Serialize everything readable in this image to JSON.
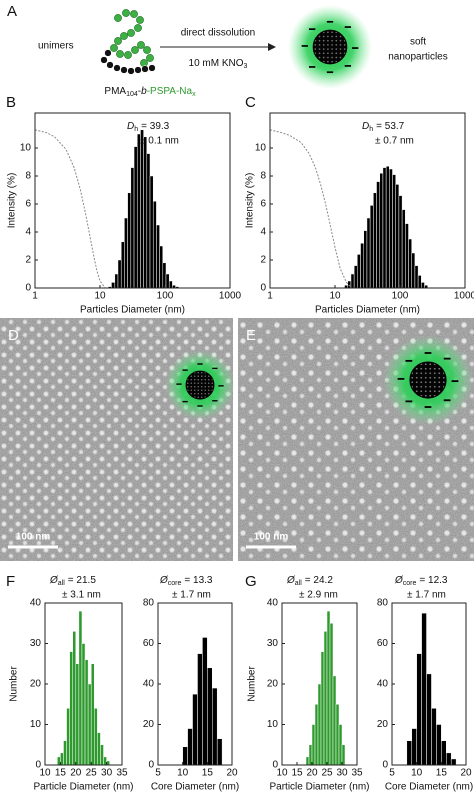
{
  "panel_a": {
    "label": "A",
    "left_text": "unimers",
    "arrow_top": "direct dissolution",
    "arrow_bottom": [
      "10 mM KNO",
      "3"
    ],
    "polymer_label": [
      "PMA",
      "104",
      "-",
      "b",
      "-PSPA-Na",
      "x"
    ],
    "right_text": [
      "soft",
      "nanoparticles"
    ]
  },
  "tem": [
    {
      "label": "D",
      "scale_bar": "100 nm"
    },
    {
      "label": "E",
      "scale_bar": "100 nm"
    }
  ],
  "chart_data": [
    {
      "type": "histogram",
      "panel_label": "B",
      "xscale": "log",
      "xlim": [
        1,
        1000
      ],
      "xticks": [
        1,
        10,
        100,
        1000
      ],
      "ylim": [
        0,
        12.5
      ],
      "yticks": [
        0,
        2,
        4,
        6,
        8,
        10
      ],
      "x_label": "Particles Diameter (nm)",
      "y_label": "Intensity (%)",
      "color": "#000000",
      "bins": [
        13.4,
        15.0,
        16.9,
        18.9,
        21.2,
        23.7,
        26.6,
        29.8,
        33.4,
        37.4,
        41.9,
        46.9,
        52.5,
        58.8,
        65.9,
        73.8,
        82.6,
        92.5,
        103.6,
        116.1,
        130.0,
        145.6,
        163.1
      ],
      "values": [
        0.1,
        0.4,
        1.0,
        2.0,
        3.3,
        5.0,
        6.8,
        8.6,
        10.1,
        11.0,
        11.3,
        10.8,
        9.6,
        8.0,
        6.2,
        4.5,
        3.0,
        1.8,
        1.0,
        0.5,
        0.2,
        0.1
      ],
      "curve_x": [
        1,
        1.5,
        2,
        3,
        4,
        5,
        6,
        7,
        8,
        9,
        10,
        12
      ],
      "curve_values": [
        11.3,
        11.1,
        10.8,
        9.9,
        8.6,
        7.0,
        5.3,
        3.7,
        2.3,
        1.2,
        0.5,
        0
      ],
      "curve_color": "#888888",
      "annotation": {
        "symbol": "D",
        "subscript": "h",
        "text": "= 39.3",
        "line2": "± 0.1 nm"
      }
    },
    {
      "type": "histogram",
      "panel_label": "C",
      "xscale": "log",
      "xlim": [
        1,
        1000
      ],
      "xticks": [
        1,
        10,
        100,
        1000
      ],
      "ylim": [
        0,
        12.5
      ],
      "yticks": [
        0,
        2,
        4,
        6,
        8,
        10
      ],
      "x_label": "Particles Diameter (nm)",
      "y_label": "Intensity (%)",
      "color": "#000000",
      "bins": [
        14.0,
        15.7,
        17.6,
        19.7,
        22.0,
        24.7,
        27.7,
        31.0,
        34.7,
        38.9,
        43.5,
        48.8,
        54.6,
        61.2,
        68.5,
        76.7,
        85.9,
        96.2,
        107.8,
        120.7,
        135.2,
        151.4,
        169.6,
        190.0,
        212.8,
        238.3,
        266.9
      ],
      "values": [
        0.2,
        0.5,
        1.0,
        1.6,
        2.4,
        3.2,
        4.1,
        5.0,
        5.9,
        6.8,
        7.6,
        8.2,
        8.6,
        8.7,
        8.5,
        8.1,
        7.4,
        6.6,
        5.6,
        4.6,
        3.5,
        2.5,
        1.6,
        0.9,
        0.4,
        0.2
      ],
      "curve_x": [
        1,
        1.5,
        2,
        3,
        4,
        5,
        6,
        7,
        8,
        10,
        12,
        15,
        18
      ],
      "curve_values": [
        11.3,
        11.1,
        10.9,
        10.4,
        9.6,
        8.6,
        7.4,
        6.2,
        5.0,
        2.9,
        1.4,
        0.4,
        0
      ],
      "curve_color": "#888888",
      "annotation": {
        "symbol": "D",
        "subscript": "h",
        "text": "= 53.7",
        "line2": "± 0.7 nm"
      }
    },
    {
      "type": "histogram",
      "panel_label": "F",
      "xlim": [
        10,
        35
      ],
      "xticks": [
        10,
        15,
        20,
        25,
        30,
        35
      ],
      "ylim": [
        0,
        40
      ],
      "yticks": [
        0,
        10,
        20,
        30,
        40
      ],
      "x_label": "Particle Diameter (nm)",
      "y_label": "Number",
      "color": "#2e9a2e",
      "bins": [
        14,
        15,
        16,
        17,
        18,
        19,
        20,
        21,
        22,
        23,
        24,
        25,
        26,
        27,
        28,
        29,
        30,
        31
      ],
      "values": [
        2,
        3,
        6,
        14,
        28,
        33,
        25,
        38,
        30,
        26,
        20,
        25,
        14,
        8,
        5,
        2,
        1
      ],
      "annotation": {
        "symbol": "Ø",
        "subscript": "all",
        "text": "= 21.5",
        "line2": "± 3.1 nm"
      }
    },
    {
      "type": "histogram",
      "xlim": [
        5,
        20
      ],
      "xticks": [
        5,
        10,
        15,
        20
      ],
      "ylim": [
        0,
        80
      ],
      "yticks": [
        0,
        20,
        40,
        60,
        80
      ],
      "x_label": "Core Diameter (nm)",
      "color": "#000000",
      "bins": [
        10,
        11,
        12,
        13,
        14,
        15,
        16,
        17,
        18
      ],
      "values": [
        9,
        18,
        35,
        55,
        63,
        48,
        38,
        13
      ],
      "annotation": {
        "symbol": "Ø",
        "subscript": "core",
        "text": "= 13.3",
        "line2": "± 1.7 nm"
      }
    },
    {
      "type": "histogram",
      "panel_label": "G",
      "xlim": [
        10,
        35
      ],
      "xticks": [
        10,
        15,
        20,
        25,
        30,
        35
      ],
      "ylim": [
        0,
        40
      ],
      "yticks": [
        0,
        10,
        20,
        30,
        40
      ],
      "x_label": "Particle Diameter (nm)",
      "y_label": "Number",
      "color": "#2e9a2e",
      "bins": [
        18,
        19,
        20,
        21,
        22,
        23,
        24,
        25,
        26,
        27,
        28,
        29,
        30,
        31
      ],
      "values": [
        2,
        5,
        10,
        15,
        20,
        28,
        33,
        38,
        35,
        22,
        15,
        10,
        5
      ],
      "annotation": {
        "symbol": "Ø",
        "subscript": "all",
        "text": "= 24.2",
        "line2": "± 2.9 nm"
      }
    },
    {
      "type": "histogram",
      "xlim": [
        5,
        20
      ],
      "xticks": [
        5,
        10,
        15,
        20
      ],
      "ylim": [
        0,
        80
      ],
      "yticks": [
        0,
        20,
        40,
        60,
        80
      ],
      "x_label": "Core Diameter (nm)",
      "color": "#000000",
      "bins": [
        8,
        9,
        10,
        11,
        12,
        13,
        14,
        15,
        16,
        17,
        18
      ],
      "values": [
        12,
        18,
        55,
        75,
        45,
        28,
        20,
        12,
        6,
        3
      ],
      "annotation": {
        "symbol": "Ø",
        "subscript": "core",
        "text": "= 12.3",
        "line2": "± 1.7 nm"
      }
    }
  ]
}
